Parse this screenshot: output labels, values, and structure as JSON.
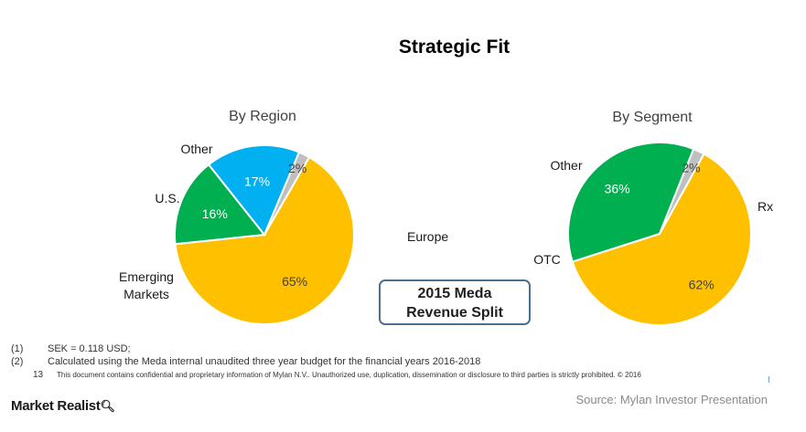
{
  "title": "Strategic Fit",
  "chart_data": [
    {
      "type": "pie",
      "title": "By Region",
      "slices": [
        {
          "label": "Europe",
          "value": 65,
          "value_label": "65%",
          "color": "#FFC000",
          "text_color": "#404040"
        },
        {
          "label": "Emerging Markets",
          "label_lines": [
            "Emerging",
            "Markets"
          ],
          "value": 16,
          "value_label": "16%",
          "color": "#00B050",
          "text_color": "#ffffff"
        },
        {
          "label": "U.S.",
          "value": 17,
          "value_label": "17%",
          "color": "#00B0F0",
          "text_color": "#ffffff"
        },
        {
          "label": "Other",
          "value": 2,
          "value_label": "2%",
          "color": "#BFBFBF",
          "text_color": "#404040"
        }
      ]
    },
    {
      "type": "pie",
      "title": "By Segment",
      "slices": [
        {
          "label": "Rx",
          "value": 62,
          "value_label": "62%",
          "color": "#FFC000",
          "text_color": "#404040"
        },
        {
          "label": "OTC",
          "value": 36,
          "value_label": "36%",
          "color": "#00B050",
          "text_color": "#ffffff"
        },
        {
          "label": "Other",
          "value": 2,
          "value_label": "2%",
          "color": "#BFBFBF",
          "text_color": "#404040"
        }
      ]
    }
  ],
  "center_box": {
    "line1": "2015 Meda",
    "line2": "Revenue Split"
  },
  "footnotes": [
    {
      "num": "(1)",
      "text": "SEK = 0.118 USD;"
    },
    {
      "num": "(2)",
      "text": "Calculated using the Meda internal unaudited three year budget for the financial years 2016-2018"
    }
  ],
  "page_number": "13",
  "confidential": "This document contains confidential and proprietary information of Mylan N.V.. Unauthorized use, duplication, dissemination or disclosure to third parties is strictly prohibited.  © 2016",
  "logo": {
    "text": "Market Realist",
    "icon": "magnifier-q-icon"
  },
  "source": "Source: Mylan Investor Presentation"
}
